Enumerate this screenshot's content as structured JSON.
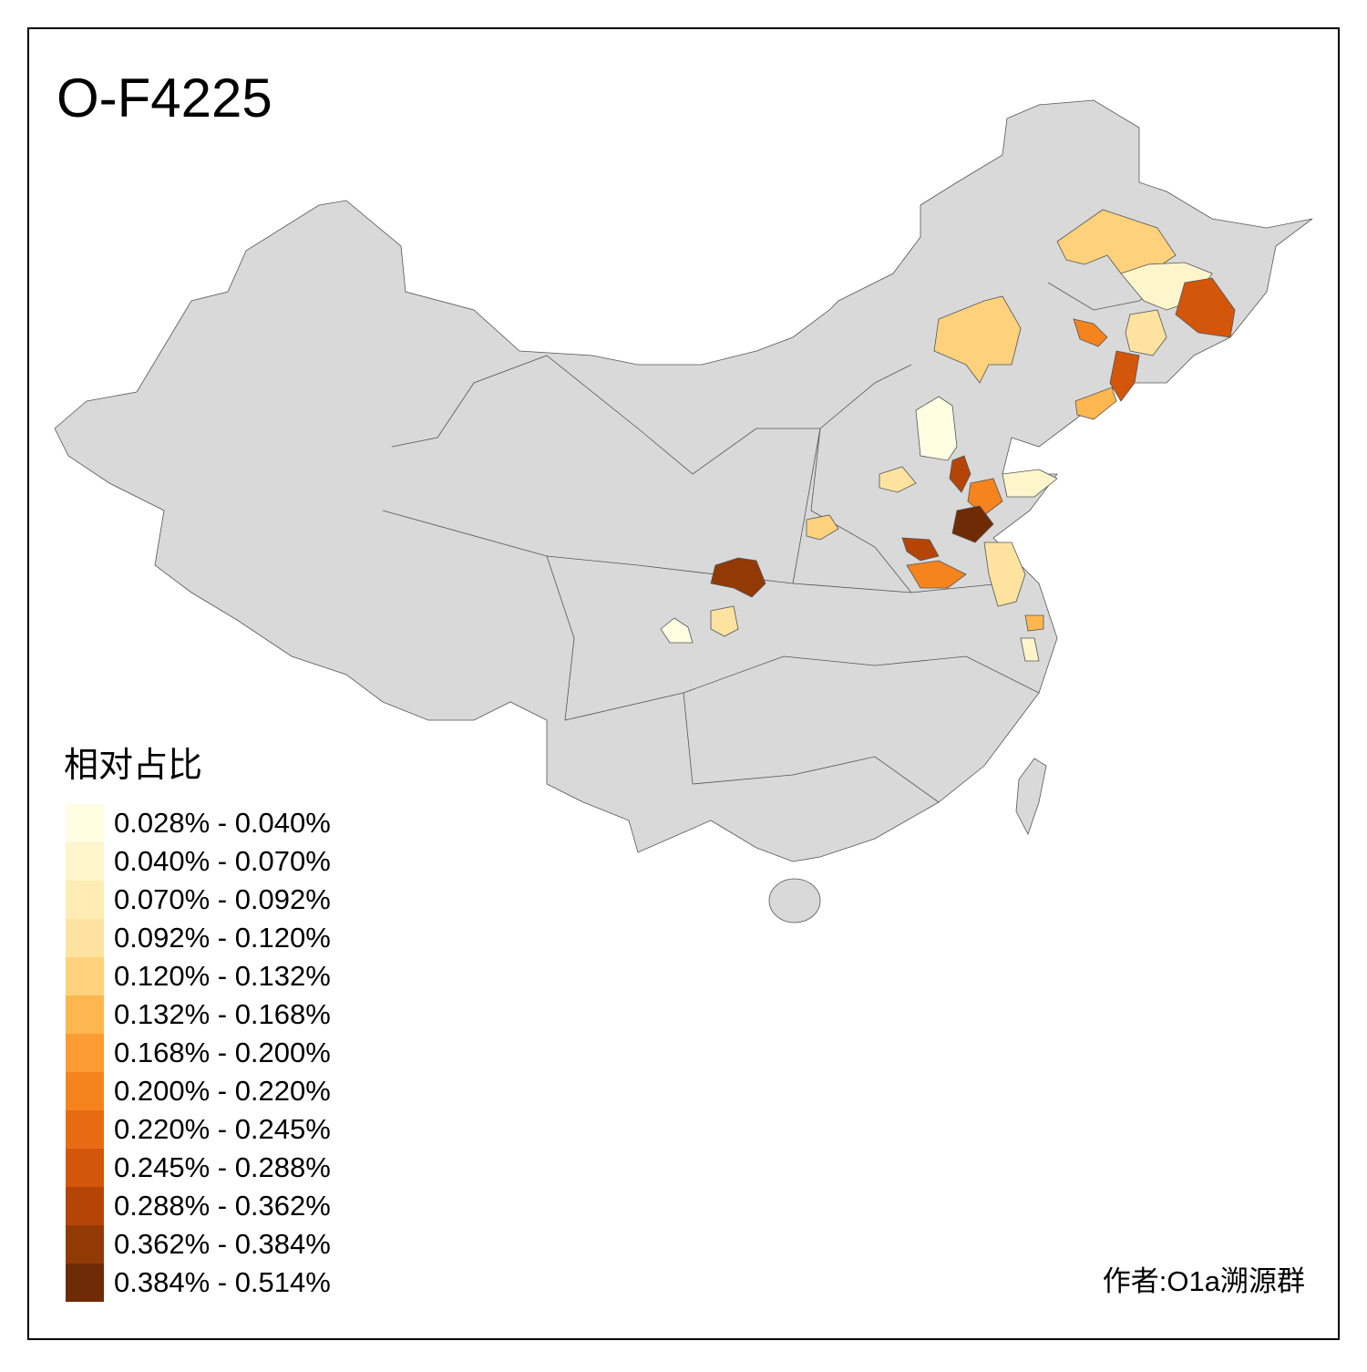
{
  "title": "O-F4225",
  "legend": {
    "title": "相对占比",
    "items": [
      {
        "label": "0.028% - 0.040%",
        "color": "#fffee3"
      },
      {
        "label": "0.040% - 0.070%",
        "color": "#fff5cc"
      },
      {
        "label": "0.070% - 0.092%",
        "color": "#ffedb5"
      },
      {
        "label": "0.092% - 0.120%",
        "color": "#fee3a0"
      },
      {
        "label": "0.120% - 0.132%",
        "color": "#fed27d"
      },
      {
        "label": "0.132% - 0.168%",
        "color": "#feb74f"
      },
      {
        "label": "0.168% - 0.200%",
        "color": "#fd9b34"
      },
      {
        "label": "0.200% - 0.220%",
        "color": "#f5841f"
      },
      {
        "label": "0.220% - 0.245%",
        "color": "#e86b14"
      },
      {
        "label": "0.245% - 0.288%",
        "color": "#d4560b"
      },
      {
        "label": "0.288% - 0.362%",
        "color": "#b54506"
      },
      {
        "label": "0.362% - 0.384%",
        "color": "#923a06"
      },
      {
        "label": "0.384% - 0.514%",
        "color": "#6e2b06"
      }
    ]
  },
  "credit": "作者:O1a溯源群"
}
